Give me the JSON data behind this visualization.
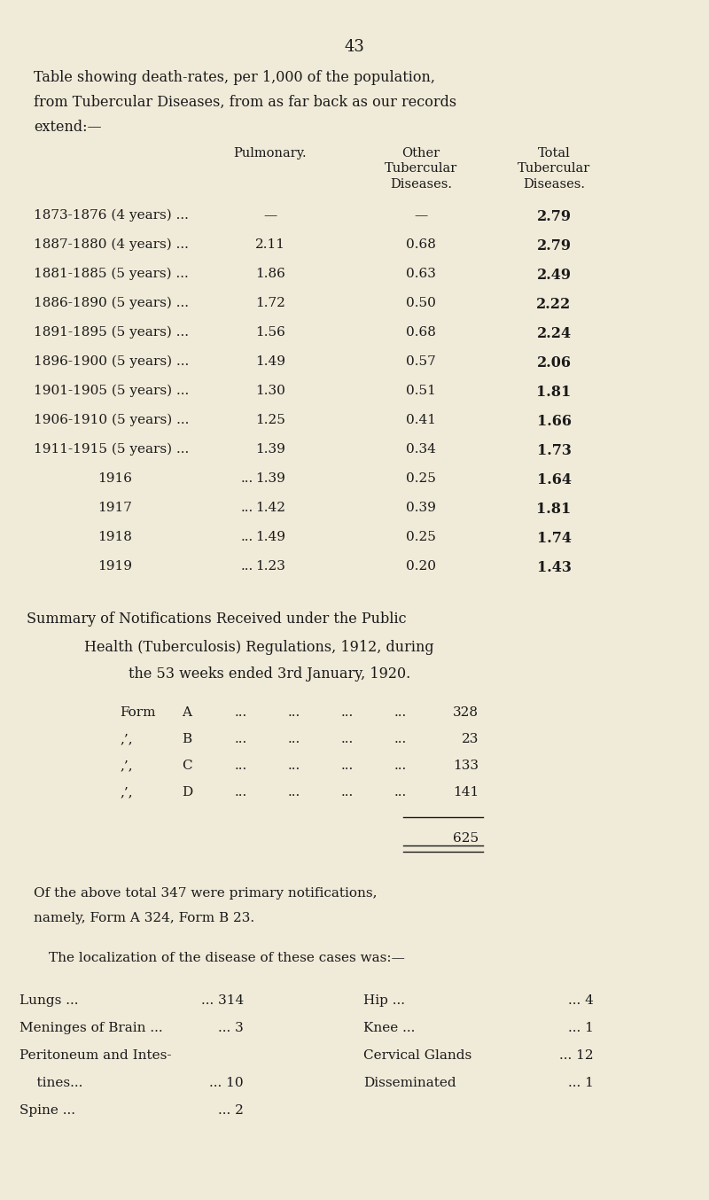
{
  "bg_color": "#f0ead8",
  "text_color": "#1a1a1a",
  "page_number": "43",
  "intro_text": [
    "Table showing death-rates, per 1,000 of the population,",
    "from Tubercular Diseases, from as far back as our records",
    "extend:—"
  ],
  "col_headers": [
    "Pulmonary.",
    "Other\nTubercular\nDiseases.",
    "Total\nTubercular\nDiseases."
  ],
  "table_rows": [
    {
      "label": "1873-1876 (4 years) ...",
      "pulmonary": "—",
      "other": "—",
      "total": "2.79"
    },
    {
      "label": "1887-1880 (4 years) ...",
      "pulmonary": "2.11",
      "other": "0.68",
      "total": "2.79"
    },
    {
      "label": "1881-1885 (5 years) ...",
      "pulmonary": "1.86",
      "other": "0.63",
      "total": "2.49"
    },
    {
      "label": "1886-1890 (5 years) ...",
      "pulmonary": "1.72",
      "other": "0.50",
      "total": "2.22"
    },
    {
      "label": "1891-1895 (5 years) ...",
      "pulmonary": "1.56",
      "other": "0.68",
      "total": "2.24"
    },
    {
      "label": "1896-1900 (5 years) ...",
      "pulmonary": "1.49",
      "other": "0.57",
      "total": "2.06"
    },
    {
      "label": "1901-1905 (5 years) ...",
      "pulmonary": "1.30",
      "other": "0.51",
      "total": "1.81"
    },
    {
      "label": "1906-1910 (5 years) ...",
      "pulmonary": "1.25",
      "other": "0.41",
      "total": "1.66"
    },
    {
      "label": "1911-1915 (5 years) ...",
      "pulmonary": "1.39",
      "other": "0.34",
      "total": "1.73"
    },
    {
      "label": "1916",
      "pulmonary": "1.39",
      "other": "0.25",
      "total": "1.64"
    },
    {
      "label": "1917",
      "pulmonary": "1.42",
      "other": "0.39",
      "total": "1.81"
    },
    {
      "label": "1918",
      "pulmonary": "1.49",
      "other": "0.25",
      "total": "1.74"
    },
    {
      "label": "1919",
      "pulmonary": "1.23",
      "other": "0.20",
      "total": "1.43"
    }
  ],
  "summary_heading1": "Summary of Notifications Received under the Public",
  "summary_heading2": "Health (Tuberculosis) Regulations, 1912, during",
  "summary_heading3": "the 53 weeks ended 3rd January, 1920.",
  "forms": [
    {
      "form": "Form  A  ...    ...    ...    ...   328"
    },
    {
      "form": ",,      B  ...    ...    ...    ...     23"
    },
    {
      "form": ",,      C  ...    ...    ...    ...   133"
    },
    {
      "form": ",,      D  ...    ...    ...    ...   141"
    }
  ],
  "total_forms": "625",
  "primary_text": "Of the above total 347 were primary notifications,",
  "primary_text2": "namely, Form A 324, Form B 23.",
  "localization_text": "The localization of the disease of these cases was:—",
  "localization_left": [
    {
      "label": "Lungs ...",
      "dots": "...",
      "value": "314"
    },
    {
      "label": "Meninges of Brain ...",
      "dots": "",
      "value": "3"
    },
    {
      "label": "Peritoneum and Intes-",
      "dots": "",
      "value": ""
    },
    {
      "label": "    tines...",
      "dots": "...",
      "value": "10"
    },
    {
      "label": "Spine ...",
      "dots": "...",
      "value": "2"
    }
  ],
  "localization_right": [
    {
      "label": "Hip ...",
      "dots": "...",
      "value": "4"
    },
    {
      "label": "Knee ...",
      "dots": "...",
      "value": "1"
    },
    {
      "label": "Cervical Glands",
      "dots": "...",
      "value": "12"
    },
    {
      "label": "Disseminated",
      "dots": "...",
      "value": "1"
    }
  ]
}
